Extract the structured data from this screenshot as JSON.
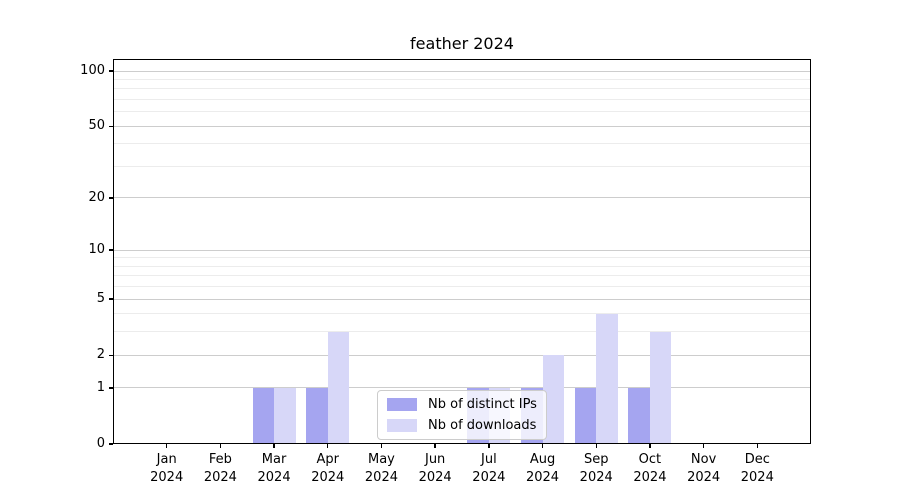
{
  "chart_data": {
    "type": "bar",
    "title": "feather 2024",
    "categories": [
      {
        "label": "Jan",
        "sub": "2024"
      },
      {
        "label": "Feb",
        "sub": "2024"
      },
      {
        "label": "Mar",
        "sub": "2024"
      },
      {
        "label": "Apr",
        "sub": "2024"
      },
      {
        "label": "May",
        "sub": "2024"
      },
      {
        "label": "Jun",
        "sub": "2024"
      },
      {
        "label": "Jul",
        "sub": "2024"
      },
      {
        "label": "Aug",
        "sub": "2024"
      },
      {
        "label": "Sep",
        "sub": "2024"
      },
      {
        "label": "Oct",
        "sub": "2024"
      },
      {
        "label": "Nov",
        "sub": "2024"
      },
      {
        "label": "Dec",
        "sub": "2024"
      }
    ],
    "series": [
      {
        "name": "Nb of distinct IPs",
        "color": "#a5a5f0",
        "values": [
          0,
          0,
          1,
          1,
          0,
          0,
          1,
          1,
          1,
          1,
          0,
          0
        ]
      },
      {
        "name": "Nb of downloads",
        "color": "#d7d7f8",
        "values": [
          0,
          0,
          1,
          3,
          0,
          0,
          1,
          2,
          4,
          3,
          0,
          0
        ]
      }
    ],
    "y_scale": "log1p",
    "y_major_ticks": [
      0,
      1,
      2,
      5,
      10,
      20,
      50,
      100
    ],
    "y_minor_gridlines": [
      3,
      4,
      6,
      7,
      8,
      9,
      30,
      40,
      60,
      70,
      80,
      90
    ],
    "ylim": [
      0,
      116
    ],
    "xlabel": "",
    "ylabel": "",
    "grid": true,
    "legend_position": "lower center inside plot",
    "colors": {
      "background": "#ffffff",
      "grid_major": "#cdcdcd",
      "grid_minor": "#ececec",
      "axis": "#000000",
      "legend_border": "#cccccc"
    }
  }
}
